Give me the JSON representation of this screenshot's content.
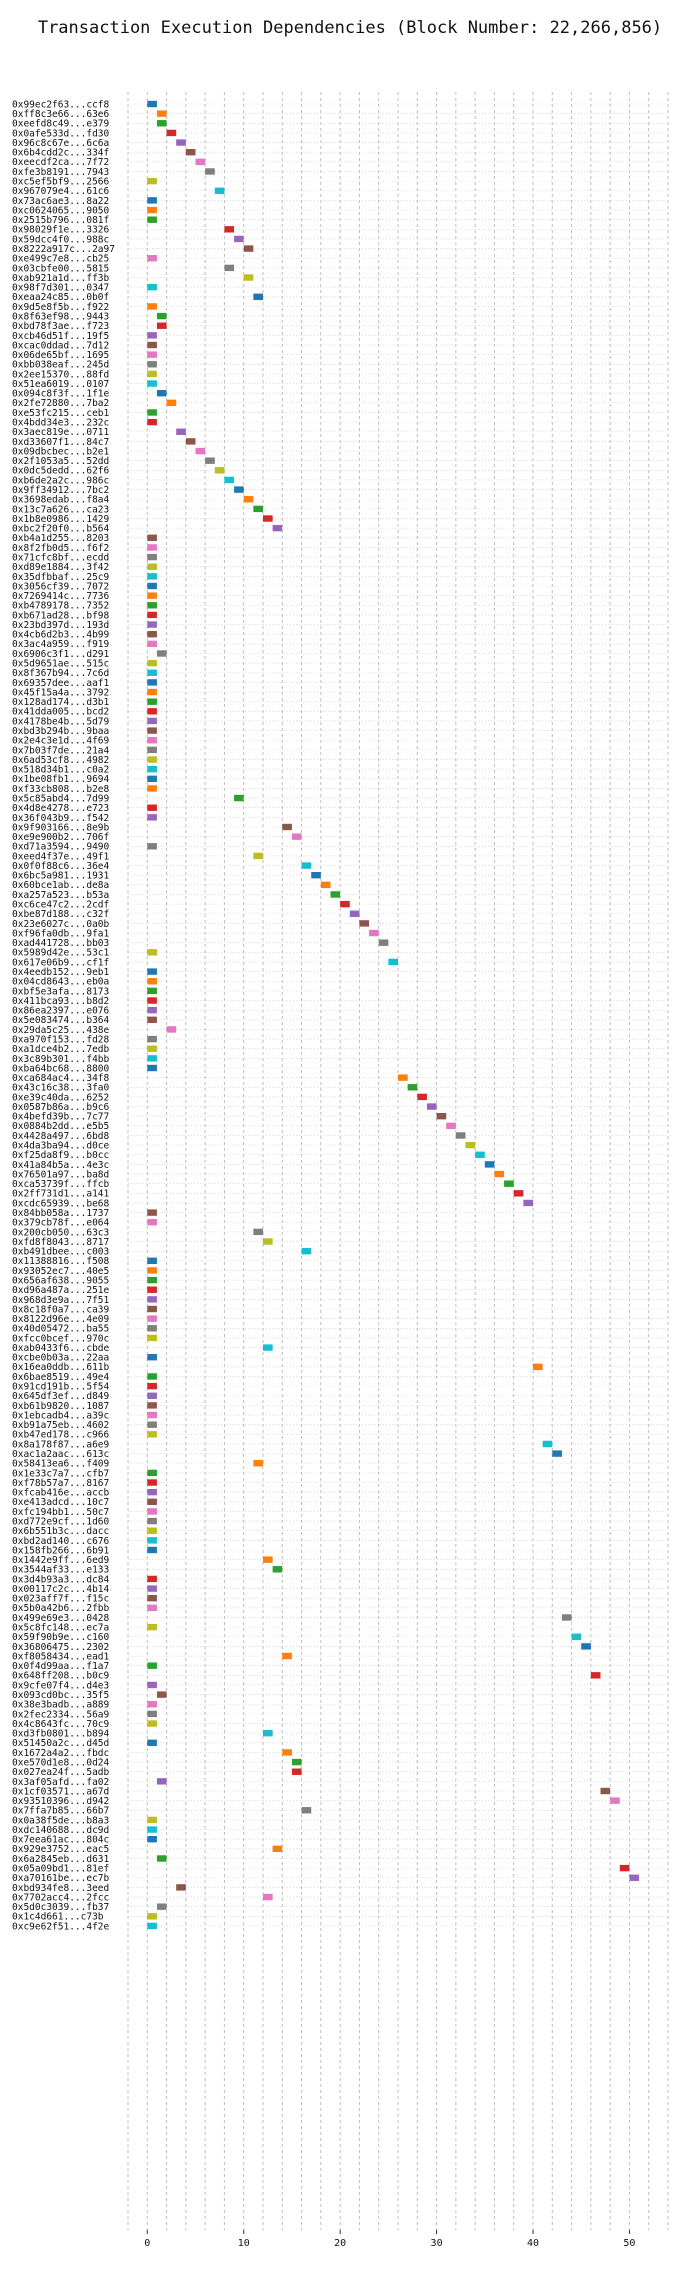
{
  "chart_data": {
    "type": "bar",
    "title": "Transaction Execution Dependencies (Block Number: 22,266,856)",
    "xlabel": "",
    "ylabel": "",
    "xlim": [
      -2,
      54
    ],
    "xticks": [
      0,
      10,
      20,
      30,
      40,
      50
    ],
    "grid": true,
    "palette": [
      "#1f77b4",
      "#ff7f0e",
      "#2ca02c",
      "#d62728",
      "#9467bd",
      "#8c564b",
      "#e377c2",
      "#7f7f7f",
      "#bcbd22",
      "#17becf"
    ],
    "transactions": [
      {
        "label": "0x99ec2f63...ccf8",
        "start": 0,
        "color": 0
      },
      {
        "label": "0xff8c3e66...63e6",
        "start": 1,
        "color": 1
      },
      {
        "label": "0xeefd8c49...e379",
        "start": 1,
        "color": 2
      },
      {
        "label": "0x0afe533d...fd30",
        "start": 2,
        "color": 3
      },
      {
        "label": "0x96c8c67e...6c6a",
        "start": 3,
        "color": 4
      },
      {
        "label": "0x6b4cdd2c...334f",
        "start": 4,
        "color": 5
      },
      {
        "label": "0xeecdf2ca...7f72",
        "start": 5,
        "color": 6
      },
      {
        "label": "0xfe3b8191...7943",
        "start": 6,
        "color": 7
      },
      {
        "label": "0xc5ef5bf9...2566",
        "start": 0,
        "color": 8
      },
      {
        "label": "0x967079e4...61c6",
        "start": 7,
        "color": 9
      },
      {
        "label": "0x73ac6ae3...8a22",
        "start": 0,
        "color": 0
      },
      {
        "label": "0xc0624065...9050",
        "start": 0,
        "color": 1
      },
      {
        "label": "0x2515b796...081f",
        "start": 0,
        "color": 2
      },
      {
        "label": "0x98029f1e...3326",
        "start": 8,
        "color": 3
      },
      {
        "label": "0x59dcc4f0...988c",
        "start": 9,
        "color": 4
      },
      {
        "label": "0x8222a917c...2a97",
        "start": 10,
        "color": 5
      },
      {
        "label": "0xe499c7e8...cb25",
        "start": 0,
        "color": 6
      },
      {
        "label": "0x03cbfe00...5815",
        "start": 8,
        "color": 7
      },
      {
        "label": "0xab921a1d...ff3b",
        "start": 10,
        "color": 8
      },
      {
        "label": "0x98f7d301...0347",
        "start": 0,
        "color": 9
      },
      {
        "label": "0xeaa24c85...0b0f",
        "start": 11,
        "color": 0
      },
      {
        "label": "0x9d5e8f5b...f922",
        "start": 0,
        "color": 1
      },
      {
        "label": "0x8f63ef98...9443",
        "start": 1,
        "color": 2
      },
      {
        "label": "0xbd78f3ae...f723",
        "start": 1,
        "color": 3
      },
      {
        "label": "0xcb46d51f...19f5",
        "start": 0,
        "color": 4
      },
      {
        "label": "0xcac0ddad...7d12",
        "start": 0,
        "color": 5
      },
      {
        "label": "0x06de65bf...1695",
        "start": 0,
        "color": 6
      },
      {
        "label": "0xbb038eaf...245d",
        "start": 0,
        "color": 7
      },
      {
        "label": "0x2ee15370...88fd",
        "start": 0,
        "color": 8
      },
      {
        "label": "0x51ea6019...0107",
        "start": 0,
        "color": 9
      },
      {
        "label": "0x094c8f3f...1f1e",
        "start": 1,
        "color": 0
      },
      {
        "label": "0x2fe72880...7ba2",
        "start": 2,
        "color": 1
      },
      {
        "label": "0xe53fc215...ceb1",
        "start": 0,
        "color": 2
      },
      {
        "label": "0x4bdd34e3...232c",
        "start": 0,
        "color": 3
      },
      {
        "label": "0x3aec819e...0711",
        "start": 3,
        "color": 4
      },
      {
        "label": "0xd33607f1...84c7",
        "start": 4,
        "color": 5
      },
      {
        "label": "0x09dbcbec...b2e1",
        "start": 5,
        "color": 6
      },
      {
        "label": "0x2f1053a5...52dd",
        "start": 6,
        "color": 7
      },
      {
        "label": "0x0dc5dedd...62f6",
        "start": 7,
        "color": 8
      },
      {
        "label": "0xb6de2a2c...986c",
        "start": 8,
        "color": 9
      },
      {
        "label": "0x9ff34912...7bc2",
        "start": 9,
        "color": 0
      },
      {
        "label": "0x3698edab...f8a4",
        "start": 10,
        "color": 1
      },
      {
        "label": "0x13c7a626...ca23",
        "start": 11,
        "color": 2
      },
      {
        "label": "0x1b8e0986...1429",
        "start": 12,
        "color": 3
      },
      {
        "label": "0xbc2f20f0...b564",
        "start": 13,
        "color": 4
      },
      {
        "label": "0xb4a1d255...8203",
        "start": 0,
        "color": 5
      },
      {
        "label": "0x8f2fb0d5...f6f2",
        "start": 0,
        "color": 6
      },
      {
        "label": "0x71cfc8bf...ecdd",
        "start": 0,
        "color": 7
      },
      {
        "label": "0xd89e1884...3f42",
        "start": 0,
        "color": 8
      },
      {
        "label": "0x35dfbbaf...25c9",
        "start": 0,
        "color": 9
      },
      {
        "label": "0x3056cf39...7072",
        "start": 0,
        "color": 0
      },
      {
        "label": "0x7269414c...7736",
        "start": 0,
        "color": 1
      },
      {
        "label": "0xb4789178...7352",
        "start": 0,
        "color": 2
      },
      {
        "label": "0xb671ad28...bf98",
        "start": 0,
        "color": 3
      },
      {
        "label": "0x23bd397d...193d",
        "start": 0,
        "color": 4
      },
      {
        "label": "0x4cb6d2b3...4b99",
        "start": 0,
        "color": 5
      },
      {
        "label": "0x3ac4a959...f919",
        "start": 0,
        "color": 6
      },
      {
        "label": "0x6906c3f1...d291",
        "start": 1,
        "color": 7
      },
      {
        "label": "0x5d9651ae...515c",
        "start": 0,
        "color": 8
      },
      {
        "label": "0x8f367b94...7c6d",
        "start": 0,
        "color": 9
      },
      {
        "label": "0x69357dee...aaf1",
        "start": 0,
        "color": 0
      },
      {
        "label": "0x45f15a4a...3792",
        "start": 0,
        "color": 1
      },
      {
        "label": "0x128ad174...d3b1",
        "start": 0,
        "color": 2
      },
      {
        "label": "0x41dda005...bcd2",
        "start": 0,
        "color": 3
      },
      {
        "label": "0x4178be4b...5d79",
        "start": 0,
        "color": 4
      },
      {
        "label": "0xbd3b294b...9baa",
        "start": 0,
        "color": 5
      },
      {
        "label": "0x2e4c3e1d...4f69",
        "start": 0,
        "color": 6
      },
      {
        "label": "0x7b03f7de...21a4",
        "start": 0,
        "color": 7
      },
      {
        "label": "0x6ad53cf8...4982",
        "start": 0,
        "color": 8
      },
      {
        "label": "0x518d34b1...c0a2",
        "start": 0,
        "color": 9
      },
      {
        "label": "0x1be08fb1...9694",
        "start": 0,
        "color": 0
      },
      {
        "label": "0xf33cb808...b2e8",
        "start": 0,
        "color": 1
      },
      {
        "label": "0x5c85abd4...7d99",
        "start": 9,
        "color": 2
      },
      {
        "label": "0x4d8e4278...e723",
        "start": 0,
        "color": 3
      },
      {
        "label": "0x36f043b9...f542",
        "start": 0,
        "color": 4
      },
      {
        "label": "0x9f903166...8e9b",
        "start": 14,
        "color": 5
      },
      {
        "label": "0xe9e900b2...706f",
        "start": 15,
        "color": 6
      },
      {
        "label": "0xd71a3594...9490",
        "start": 0,
        "color": 7
      },
      {
        "label": "0xeed4f37e...49f1",
        "start": 11,
        "color": 8
      },
      {
        "label": "0x0f0f88c6...36e4",
        "start": 16,
        "color": 9
      },
      {
        "label": "0x6bc5a981...1931",
        "start": 17,
        "color": 0
      },
      {
        "label": "0x60bce1ab...de8a",
        "start": 18,
        "color": 1
      },
      {
        "label": "0xa257a523...b53a",
        "start": 19,
        "color": 2
      },
      {
        "label": "0xc6ce47c2...2cdf",
        "start": 20,
        "color": 3
      },
      {
        "label": "0xbe87d188...c32f",
        "start": 21,
        "color": 4
      },
      {
        "label": "0x23e6027c...0a0b",
        "start": 22,
        "color": 5
      },
      {
        "label": "0xf96fa0db...9fa1",
        "start": 23,
        "color": 6
      },
      {
        "label": "0xad441728...bb03",
        "start": 24,
        "color": 7
      },
      {
        "label": "0x5989d42e...53c1",
        "start": 0,
        "color": 8
      },
      {
        "label": "0x617e06b9...cf1f",
        "start": 25,
        "color": 9
      },
      {
        "label": "0x4eedb152...9eb1",
        "start": 0,
        "color": 0
      },
      {
        "label": "0x04cd8643...eb0a",
        "start": 0,
        "color": 1
      },
      {
        "label": "0xbf5e3afa...8173",
        "start": 0,
        "color": 2
      },
      {
        "label": "0x411bca93...b8d2",
        "start": 0,
        "color": 3
      },
      {
        "label": "0x86ea2397...e076",
        "start": 0,
        "color": 4
      },
      {
        "label": "0x5e083474...b364",
        "start": 0,
        "color": 5
      },
      {
        "label": "0x29da5c25...438e",
        "start": 2,
        "color": 6
      },
      {
        "label": "0xa970f153...fd28",
        "start": 0,
        "color": 7
      },
      {
        "label": "0xa1dce4b2...7edb",
        "start": 0,
        "color": 8
      },
      {
        "label": "0x3c89b301...f4bb",
        "start": 0,
        "color": 9
      },
      {
        "label": "0xba64bc68...8800",
        "start": 0,
        "color": 0
      },
      {
        "label": "0xca684ac4...34f8",
        "start": 26,
        "color": 1
      },
      {
        "label": "0x43c16c38...3fa0",
        "start": 27,
        "color": 2
      },
      {
        "label": "0xe39c40da...6252",
        "start": 28,
        "color": 3
      },
      {
        "label": "0x0587b86a...b9c6",
        "start": 29,
        "color": 4
      },
      {
        "label": "0x4befd39b...7c77",
        "start": 30,
        "color": 5
      },
      {
        "label": "0x0884b2dd...e5b5",
        "start": 31,
        "color": 6
      },
      {
        "label": "0x4428a497...6bd8",
        "start": 32,
        "color": 7
      },
      {
        "label": "0x4da3ba94...d0ce",
        "start": 33,
        "color": 8
      },
      {
        "label": "0xf25da8f9...b0cc",
        "start": 34,
        "color": 9
      },
      {
        "label": "0x41a84b5a...4e3c",
        "start": 35,
        "color": 0
      },
      {
        "label": "0x76501a97...ba8d",
        "start": 36,
        "color": 1
      },
      {
        "label": "0xca53739f...ffcb",
        "start": 37,
        "color": 2
      },
      {
        "label": "0x2ff731d1...a141",
        "start": 38,
        "color": 3
      },
      {
        "label": "0xcdc65939...be68",
        "start": 39,
        "color": 4
      },
      {
        "label": "0x84bb058a...1737",
        "start": 0,
        "color": 5
      },
      {
        "label": "0x379cb78f...e064",
        "start": 0,
        "color": 6
      },
      {
        "label": "0x200cb050...63c3",
        "start": 11,
        "color": 7
      },
      {
        "label": "0xfd8f8043...8717",
        "start": 12,
        "color": 8
      },
      {
        "label": "0xb491dbee...c003",
        "start": 16,
        "color": 9
      },
      {
        "label": "0x11388816...f508",
        "start": 0,
        "color": 0
      },
      {
        "label": "0x93052ec7...40e5",
        "start": 0,
        "color": 1
      },
      {
        "label": "0x656af638...9055",
        "start": 0,
        "color": 2
      },
      {
        "label": "0xd96a487a...251e",
        "start": 0,
        "color": 3
      },
      {
        "label": "0x968d3e9a...7f51",
        "start": 0,
        "color": 4
      },
      {
        "label": "0x8c18f0a7...ca39",
        "start": 0,
        "color": 5
      },
      {
        "label": "0x8122d96e...4e09",
        "start": 0,
        "color": 6
      },
      {
        "label": "0x40d05472...ba55",
        "start": 0,
        "color": 7
      },
      {
        "label": "0xfcc0bcef...970c",
        "start": 0,
        "color": 8
      },
      {
        "label": "0xab0433f6...cbde",
        "start": 12,
        "color": 9
      },
      {
        "label": "0xcbe0b03a...22aa",
        "start": 0,
        "color": 0
      },
      {
        "label": "0x16ea0ddb...611b",
        "start": 40,
        "color": 1
      },
      {
        "label": "0x6bae8519...49e4",
        "start": 0,
        "color": 2
      },
      {
        "label": "0x91cd191b...5f54",
        "start": 0,
        "color": 3
      },
      {
        "label": "0x645df3ef...d849",
        "start": 0,
        "color": 4
      },
      {
        "label": "0xb61b9820...1087",
        "start": 0,
        "color": 5
      },
      {
        "label": "0x1ebcadb4...a39c",
        "start": 0,
        "color": 6
      },
      {
        "label": "0xb91a75eb...4602",
        "start": 0,
        "color": 7
      },
      {
        "label": "0xb47ed178...c966",
        "start": 0,
        "color": 8
      },
      {
        "label": "0x8a178f87...a6e9",
        "start": 41,
        "color": 9
      },
      {
        "label": "0xac1a2aac...613c",
        "start": 42,
        "color": 0
      },
      {
        "label": "0x58413ea6...f409",
        "start": 11,
        "color": 1
      },
      {
        "label": "0x1e33c7a7...cfb7",
        "start": 0,
        "color": 2
      },
      {
        "label": "0xf78b57a7...8167",
        "start": 0,
        "color": 3
      },
      {
        "label": "0xfcab416e...accb",
        "start": 0,
        "color": 4
      },
      {
        "label": "0xe413adcd...10c7",
        "start": 0,
        "color": 5
      },
      {
        "label": "0xfc194bb1...50c7",
        "start": 0,
        "color": 6
      },
      {
        "label": "0xd772e9cf...1d60",
        "start": 0,
        "color": 7
      },
      {
        "label": "0x6b551b3c...dacc",
        "start": 0,
        "color": 8
      },
      {
        "label": "0xbd2ad140...c676",
        "start": 0,
        "color": 9
      },
      {
        "label": "0x158fb266...6b91",
        "start": 0,
        "color": 0
      },
      {
        "label": "0x1442e9ff...6ed9",
        "start": 12,
        "color": 1
      },
      {
        "label": "0x3544af33...e133",
        "start": 13,
        "color": 2
      },
      {
        "label": "0x3d4b93a3...dc84",
        "start": 0,
        "color": 3
      },
      {
        "label": "0x00117c2c...4b14",
        "start": 0,
        "color": 4
      },
      {
        "label": "0x023aff7f...f15c",
        "start": 0,
        "color": 5
      },
      {
        "label": "0x5b0a42b6...2fbb",
        "start": 0,
        "color": 6
      },
      {
        "label": "0x499e69e3...0428",
        "start": 43,
        "color": 7
      },
      {
        "label": "0x5c8fc148...ec7a",
        "start": 0,
        "color": 8
      },
      {
        "label": "0x59f90b9e...c160",
        "start": 44,
        "color": 9
      },
      {
        "label": "0x36806475...2302",
        "start": 45,
        "color": 0
      },
      {
        "label": "0xf8058434...ead1",
        "start": 14,
        "color": 1
      },
      {
        "label": "0x0f4d99aa...f1a7",
        "start": 0,
        "color": 2
      },
      {
        "label": "0x648ff208...b0c9",
        "start": 46,
        "color": 3
      },
      {
        "label": "0x9cfe07f4...d4e3",
        "start": 0,
        "color": 4
      },
      {
        "label": "0x093cd0bc...35f5",
        "start": 1,
        "color": 5
      },
      {
        "label": "0x38e3badb...a889",
        "start": 0,
        "color": 6
      },
      {
        "label": "0x2fec2334...56a9",
        "start": 0,
        "color": 7
      },
      {
        "label": "0x4c8643fc...70c9",
        "start": 0,
        "color": 8
      },
      {
        "label": "0xd3fb0801...b894",
        "start": 12,
        "color": 9
      },
      {
        "label": "0x51450a2c...d45d",
        "start": 0,
        "color": 0
      },
      {
        "label": "0x1672a4a2...fbdc",
        "start": 14,
        "color": 1
      },
      {
        "label": "0xe570d1e8...0d24",
        "start": 15,
        "color": 2
      },
      {
        "label": "0x027ea24f...5adb",
        "start": 15,
        "color": 3
      },
      {
        "label": "0x3af05afd...fa02",
        "start": 1,
        "color": 4
      },
      {
        "label": "0x1cf03571...a67d",
        "start": 47,
        "color": 5
      },
      {
        "label": "0x93510396...d942",
        "start": 48,
        "color": 6
      },
      {
        "label": "0x7ffa7b85...66b7",
        "start": 16,
        "color": 7
      },
      {
        "label": "0x0a38f5de...b8a3",
        "start": 0,
        "color": 8
      },
      {
        "label": "0xdc140688...dc9d",
        "start": 0,
        "color": 9
      },
      {
        "label": "0x7eea61ac...804c",
        "start": 0,
        "color": 0
      },
      {
        "label": "0x929e3752...eac5",
        "start": 13,
        "color": 1
      },
      {
        "label": "0x6a2845eb...d631",
        "start": 1,
        "color": 2
      },
      {
        "label": "0x05a09bd1...81ef",
        "start": 49,
        "color": 3
      },
      {
        "label": "0xa70161be...ec7b",
        "start": 50,
        "color": 4
      },
      {
        "label": "0xbd934fe8...3eed",
        "start": 3,
        "color": 5
      },
      {
        "label": "0x7702acc4...2fcc",
        "start": 12,
        "color": 6
      },
      {
        "label": "0x5d0c3039...fb37",
        "start": 1,
        "color": 7
      },
      {
        "label": "0x1c4d661...c73b",
        "start": 0,
        "color": 8
      },
      {
        "label": "0xc9e62f51...4f2e",
        "start": 0,
        "color": 9
      }
    ]
  }
}
